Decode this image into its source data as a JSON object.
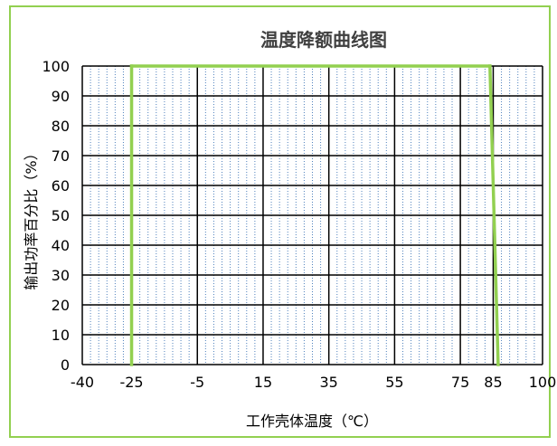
{
  "chart_data": {
    "type": "line",
    "title": "温度降额曲线图",
    "xlabel": "工作壳体温度（℃）",
    "ylabel": "输出功率百分比（%）",
    "xlim": [
      -40,
      100
    ],
    "ylim": [
      0,
      100
    ],
    "x_ticks": [
      {
        "value": -40,
        "label": "-40"
      },
      {
        "value": -25,
        "label": "-25"
      },
      {
        "value": -5,
        "label": "-5"
      },
      {
        "value": 15,
        "label": "15"
      },
      {
        "value": 35,
        "label": "35"
      },
      {
        "value": 55,
        "label": "55"
      },
      {
        "value": 75,
        "label": "75"
      },
      {
        "value": 85,
        "label": "85"
      },
      {
        "value": 100,
        "label": "100"
      }
    ],
    "y_ticks": [
      0,
      10,
      20,
      30,
      40,
      50,
      60,
      70,
      80,
      90,
      100
    ],
    "minor_x_gridlines": [
      -37.5,
      -35,
      -32.5,
      -30,
      -27.5,
      -22.5,
      -20,
      -17.5,
      -15,
      -12.5,
      -10,
      -7.5,
      -2.5,
      0,
      2.5,
      5,
      7.5,
      10,
      12.5,
      17.5,
      20,
      22.5,
      25,
      27.5,
      30,
      32.5,
      37.5,
      40,
      42.5,
      45,
      47.5,
      50,
      52.5,
      57.5,
      60,
      62.5,
      65,
      67.5,
      70,
      72.5,
      77.5,
      80,
      82.5,
      87.5,
      90,
      92.5,
      95,
      97.5
    ],
    "grid": true,
    "series": [
      {
        "color": "#92d050",
        "points": [
          [
            -25,
            0
          ],
          [
            -25,
            100
          ],
          [
            84,
            100
          ],
          [
            86.5,
            0
          ]
        ]
      }
    ]
  },
  "colors": {
    "border": "#92d050",
    "curve": "#92d050",
    "minor_grid": "#4f81bd",
    "major_grid": "#000000"
  }
}
